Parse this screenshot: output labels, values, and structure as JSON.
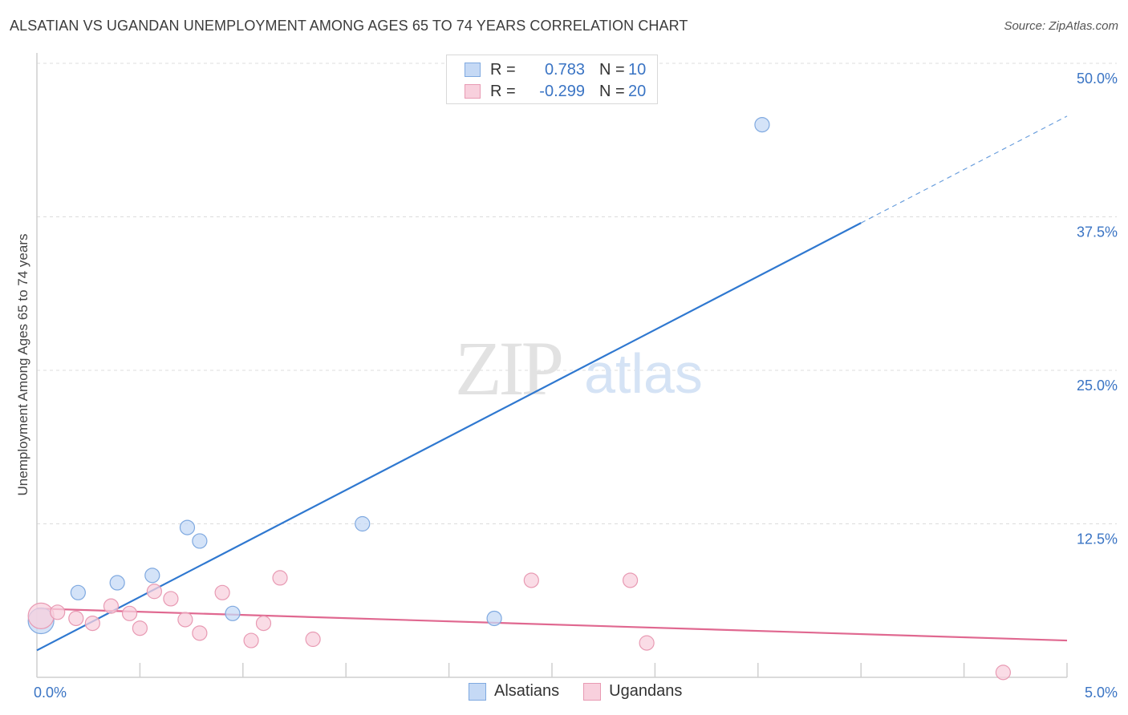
{
  "chart_data": {
    "type": "scatter",
    "title": "ALSATIAN VS UGANDAN UNEMPLOYMENT AMONG AGES 65 TO 74 YEARS CORRELATION CHART",
    "source": "Source: ZipAtlas.com",
    "ylabel": "Unemployment Among Ages 65 to 74 years",
    "xlim": [
      0,
      5.0
    ],
    "ylim": [
      0,
      50.0
    ],
    "x_tick_labels": [
      "0.0%",
      "5.0%"
    ],
    "y_ticks": [
      12.5,
      25.0,
      37.5,
      50.0
    ],
    "y_tick_labels": [
      "12.5%",
      "25.0%",
      "37.5%",
      "50.0%"
    ],
    "watermark": {
      "zip": "ZIP",
      "atlas": "atlas"
    },
    "legend": [
      {
        "r_label": "R =",
        "r_value": "0.783",
        "n_label": "N =",
        "n_value": "10"
      },
      {
        "r_label": "R =",
        "r_value": "-0.299",
        "n_label": "N =",
        "n_value": "20"
      }
    ],
    "series": [
      {
        "name": "Alsatians",
        "color": "#7fa9e0",
        "fill": "#c5d9f5",
        "line_color": "#2f78d0",
        "points": [
          [
            0.02,
            4.6,
            16
          ],
          [
            0.2,
            6.9,
            9
          ],
          [
            0.39,
            7.7,
            9
          ],
          [
            0.56,
            8.3,
            9
          ],
          [
            0.73,
            12.2,
            9
          ],
          [
            0.79,
            11.1,
            9
          ],
          [
            0.95,
            5.2,
            9
          ],
          [
            1.58,
            12.5,
            9
          ],
          [
            2.22,
            4.8,
            9
          ],
          [
            3.52,
            45.0,
            9
          ]
        ],
        "trend": {
          "x0": 0.0,
          "y0": 2.2,
          "x1": 4.0,
          "y1": 37.0,
          "x_dash_end": 5.0,
          "y_dash_end": 45.7
        }
      },
      {
        "name": "Ugandans",
        "color": "#e89ab3",
        "fill": "#f8d0dd",
        "line_color": "#e06890",
        "points": [
          [
            0.02,
            5.0,
            16
          ],
          [
            0.1,
            5.3,
            9
          ],
          [
            0.19,
            4.8,
            9
          ],
          [
            0.27,
            4.4,
            9
          ],
          [
            0.36,
            5.8,
            9
          ],
          [
            0.45,
            5.2,
            9
          ],
          [
            0.5,
            4.0,
            9
          ],
          [
            0.57,
            7.0,
            9
          ],
          [
            0.65,
            6.4,
            9
          ],
          [
            0.72,
            4.7,
            9
          ],
          [
            0.79,
            3.6,
            9
          ],
          [
            0.9,
            6.9,
            9
          ],
          [
            1.04,
            3.0,
            9
          ],
          [
            1.1,
            4.4,
            9
          ],
          [
            1.18,
            8.1,
            9
          ],
          [
            1.34,
            3.1,
            9
          ],
          [
            2.4,
            7.9,
            9
          ],
          [
            2.88,
            7.9,
            9
          ],
          [
            2.96,
            2.8,
            9
          ],
          [
            4.69,
            0.4,
            9
          ]
        ],
        "trend": {
          "x0": 0.0,
          "y0": 5.6,
          "x1": 5.0,
          "y1": 3.0
        }
      }
    ]
  }
}
